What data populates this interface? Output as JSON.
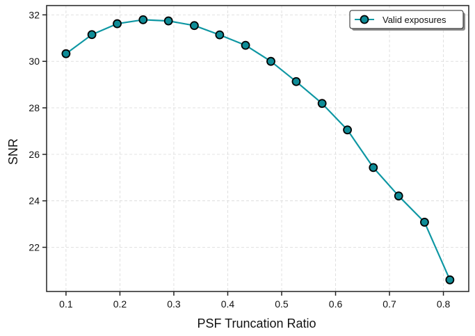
{
  "chart_data": {
    "type": "line",
    "title": "",
    "xlabel": "PSF Truncation Ratio",
    "ylabel": "SNR",
    "xlim": [
      0.064,
      0.847
    ],
    "ylim": [
      20.1,
      32.4
    ],
    "x_ticks": [
      0.1,
      0.2,
      0.3,
      0.4,
      0.5,
      0.6,
      0.7,
      0.8
    ],
    "x_tick_labels": [
      "0.1",
      "0.2",
      "0.3",
      "0.4",
      "0.5",
      "0.6",
      "0.7",
      "0.8"
    ],
    "y_ticks": [
      22,
      24,
      26,
      28,
      30,
      32
    ],
    "y_tick_labels": [
      "22",
      "24",
      "26",
      "28",
      "30",
      "32"
    ],
    "grid": true,
    "legend_position": "top-right",
    "series": [
      {
        "name": "Valid exposures",
        "color": "#0e97a3",
        "marker_face": "#0e8c97",
        "marker_edge": "#000000",
        "x": [
          0.1,
          0.148,
          0.195,
          0.243,
          0.29,
          0.338,
          0.385,
          0.433,
          0.48,
          0.527,
          0.575,
          0.622,
          0.67,
          0.717,
          0.765,
          0.812
        ],
        "y": [
          30.33,
          31.15,
          31.62,
          31.79,
          31.74,
          31.54,
          31.14,
          30.69,
          30.0,
          29.13,
          28.19,
          27.05,
          25.43,
          24.21,
          23.08,
          20.6
        ]
      }
    ]
  }
}
